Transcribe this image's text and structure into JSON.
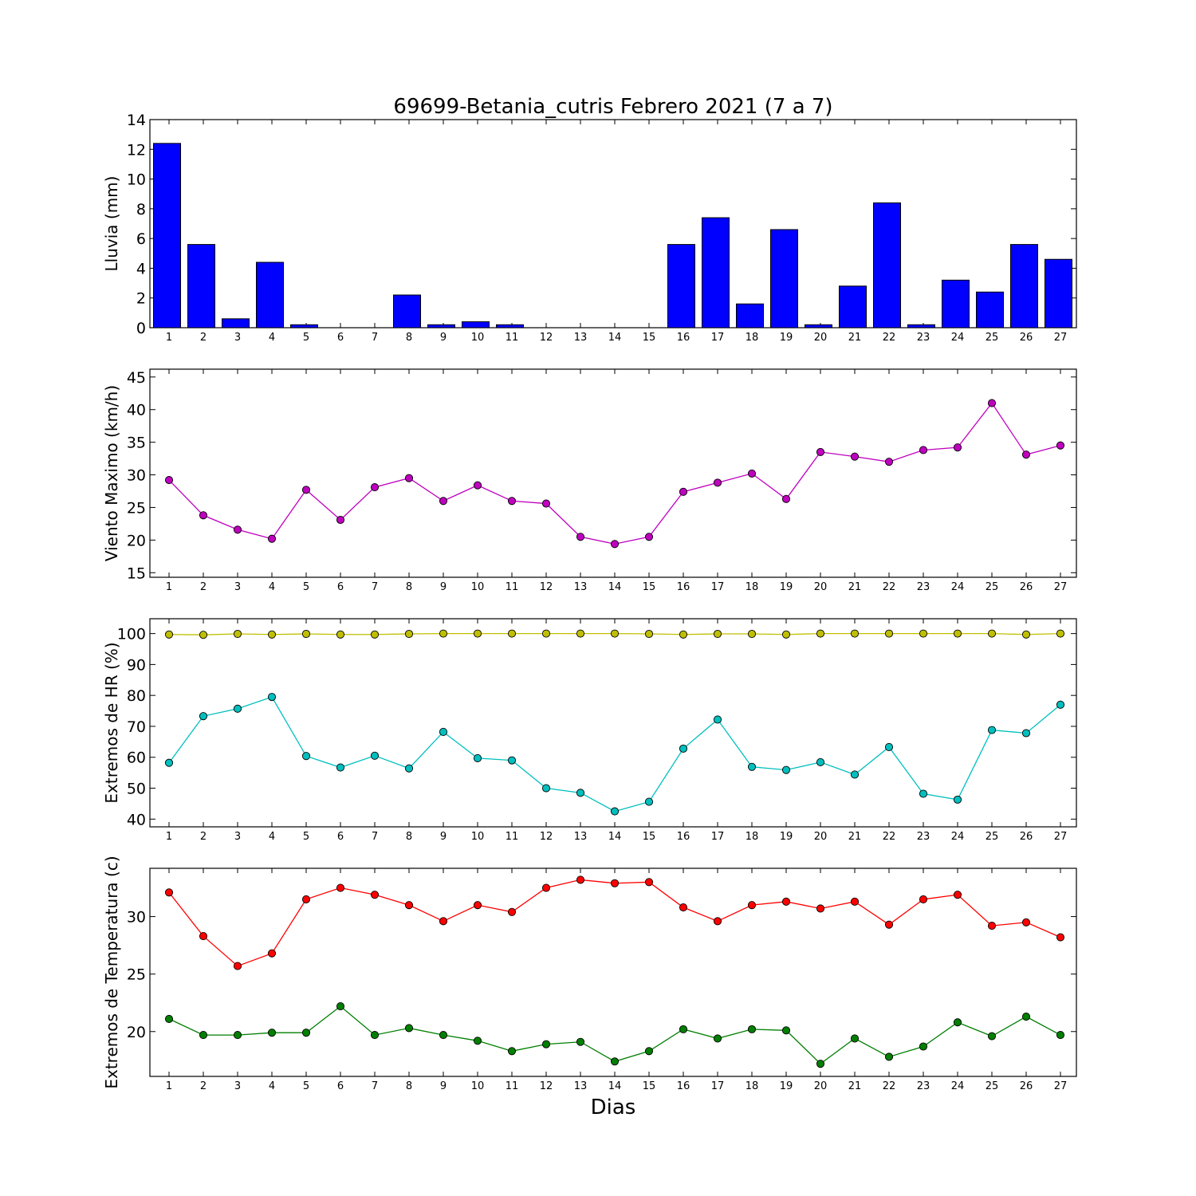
{
  "title": "69699-Betania_cutris Febrero 2021  (7 a 7)",
  "xlabel": "Dias",
  "chart_data": [
    {
      "type": "bar",
      "ylabel": "Lluvia (mm)",
      "ylim": [
        0,
        14
      ],
      "yticks": [
        0,
        2,
        4,
        6,
        8,
        10,
        12,
        14
      ],
      "categories": [
        "1",
        "2",
        "3",
        "4",
        "5",
        "6",
        "7",
        "8",
        "9",
        "10",
        "11",
        "12",
        "13",
        "14",
        "15",
        "16",
        "17",
        "18",
        "19",
        "20",
        "21",
        "22",
        "23",
        "24",
        "25",
        "26",
        "27"
      ],
      "series": [
        {
          "color": "#0000ff",
          "values": [
            12.4,
            5.6,
            0.6,
            4.4,
            0.2,
            0,
            0,
            2.2,
            0.2,
            0.4,
            0.2,
            0,
            0,
            0,
            0,
            5.6,
            7.4,
            1.6,
            6.6,
            0.2,
            2.8,
            8.4,
            0.2,
            3.2,
            2.4,
            5.6,
            4.6
          ]
        }
      ]
    },
    {
      "type": "line",
      "ylabel": "Viento Maximo (km/h)",
      "ylim": [
        14.3,
        46.2
      ],
      "yticks": [
        15,
        20,
        25,
        30,
        35,
        40,
        45
      ],
      "categories": [
        "1",
        "2",
        "3",
        "4",
        "5",
        "6",
        "7",
        "8",
        "9",
        "10",
        "11",
        "12",
        "13",
        "14",
        "15",
        "16",
        "17",
        "18",
        "19",
        "20",
        "21",
        "22",
        "23",
        "24",
        "25",
        "26",
        "27"
      ],
      "series": [
        {
          "color": "#bf00bf",
          "values": [
            29.2,
            23.8,
            21.6,
            20.2,
            27.7,
            23.1,
            28.1,
            29.5,
            26.0,
            28.4,
            26.0,
            25.6,
            20.5,
            19.4,
            20.5,
            27.4,
            28.8,
            30.2,
            26.3,
            33.5,
            32.8,
            32.0,
            33.8,
            34.2,
            41.0,
            33.1,
            34.5
          ]
        }
      ]
    },
    {
      "type": "line",
      "ylabel": "Extremos de HR (%)",
      "ylim": [
        37.5,
        104.8
      ],
      "yticks": [
        40,
        50,
        60,
        70,
        80,
        90,
        100
      ],
      "categories": [
        "1",
        "2",
        "3",
        "4",
        "5",
        "6",
        "7",
        "8",
        "9",
        "10",
        "11",
        "12",
        "13",
        "14",
        "15",
        "16",
        "17",
        "18",
        "19",
        "20",
        "21",
        "22",
        "23",
        "24",
        "25",
        "26",
        "27"
      ],
      "series": [
        {
          "color": "#bfbf00",
          "values": [
            99.7,
            99.6,
            99.9,
            99.7,
            99.9,
            99.7,
            99.7,
            99.9,
            100,
            100,
            100,
            100,
            100,
            100,
            99.9,
            99.7,
            99.9,
            99.9,
            99.7,
            100,
            100,
            100,
            100,
            100,
            100,
            99.7,
            100
          ]
        },
        {
          "color": "#00bfbf",
          "values": [
            58.2,
            73.3,
            75.7,
            79.5,
            60.4,
            56.7,
            60.5,
            56.4,
            68.2,
            59.7,
            59.0,
            50.0,
            48.5,
            42.5,
            45.6,
            62.8,
            72.2,
            56.9,
            55.9,
            58.4,
            54.4,
            63.3,
            48.2,
            46.3,
            68.8,
            67.8,
            77.0
          ]
        }
      ]
    },
    {
      "type": "line",
      "ylabel": "Extremos de Temperatura (c)",
      "ylim": [
        16.1,
        34.2
      ],
      "yticks": [
        20,
        25,
        30
      ],
      "categories": [
        "1",
        "2",
        "3",
        "4",
        "5",
        "6",
        "7",
        "8",
        "9",
        "10",
        "11",
        "12",
        "13",
        "14",
        "15",
        "16",
        "17",
        "18",
        "19",
        "20",
        "21",
        "22",
        "23",
        "24",
        "25",
        "26",
        "27"
      ],
      "series": [
        {
          "color": "#ff0000",
          "values": [
            32.1,
            28.3,
            25.7,
            26.8,
            31.5,
            32.5,
            31.9,
            31.0,
            29.6,
            31.0,
            30.4,
            32.5,
            33.2,
            32.9,
            33.0,
            30.8,
            29.6,
            31.0,
            31.3,
            30.7,
            31.3,
            29.3,
            31.5,
            31.9,
            29.2,
            29.5,
            28.2
          ]
        },
        {
          "color": "#007f00",
          "values": [
            21.1,
            19.7,
            19.7,
            19.9,
            19.9,
            22.2,
            19.7,
            20.3,
            19.7,
            19.2,
            18.3,
            18.9,
            19.1,
            17.4,
            18.3,
            20.2,
            19.4,
            20.2,
            20.1,
            17.2,
            19.4,
            17.8,
            18.7,
            20.8,
            19.6,
            21.3,
            19.7
          ]
        }
      ]
    }
  ]
}
